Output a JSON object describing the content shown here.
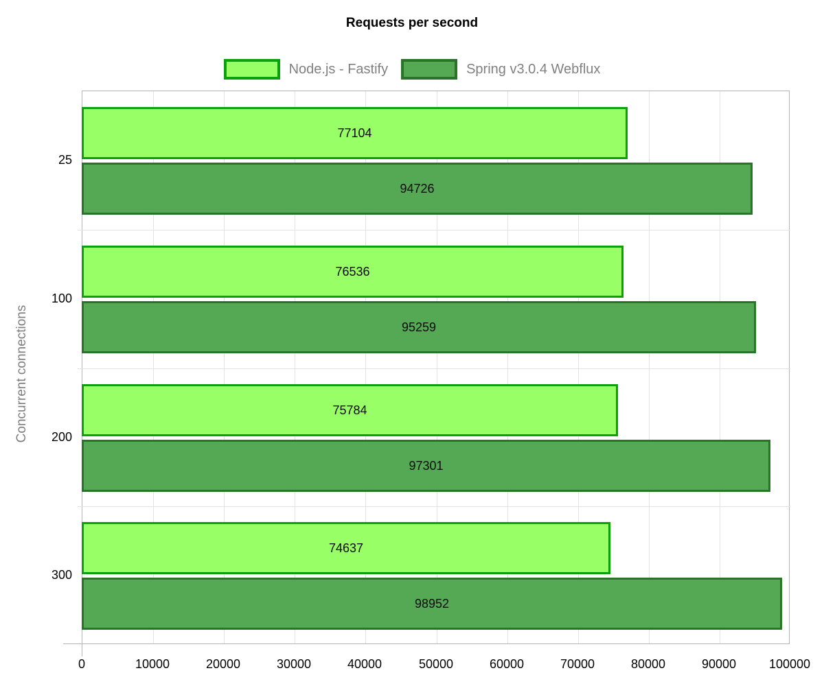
{
  "chart_data": {
    "type": "bar",
    "orientation": "horizontal",
    "title": "Requests per second",
    "categories": [
      "25",
      "100",
      "200",
      "300"
    ],
    "series": [
      {
        "name": "Node.js - Fastify",
        "values": [
          77104,
          76536,
          75784,
          74637
        ],
        "fill": "#99ff66",
        "border": "#0ca00c"
      },
      {
        "name": "Spring v3.0.4 Webflux",
        "values": [
          94726,
          95259,
          97301,
          98952
        ],
        "fill": "#55a955",
        "border": "#2a742a"
      }
    ],
    "xlim": [
      0,
      100000
    ],
    "xtick_step": 10000,
    "xtick_labels": [
      "0",
      "10000",
      "20000",
      "30000",
      "40000",
      "50000",
      "60000",
      "70000",
      "80000",
      "90000",
      "100000"
    ],
    "ylabel": "Concurrent connections",
    "value_labels": true,
    "legend_position": "top",
    "grid": true,
    "colors": {
      "axis": "#b3b3b3",
      "grid": "#e3e3e3",
      "label_text": "#000000",
      "muted_text": "#808080"
    }
  }
}
